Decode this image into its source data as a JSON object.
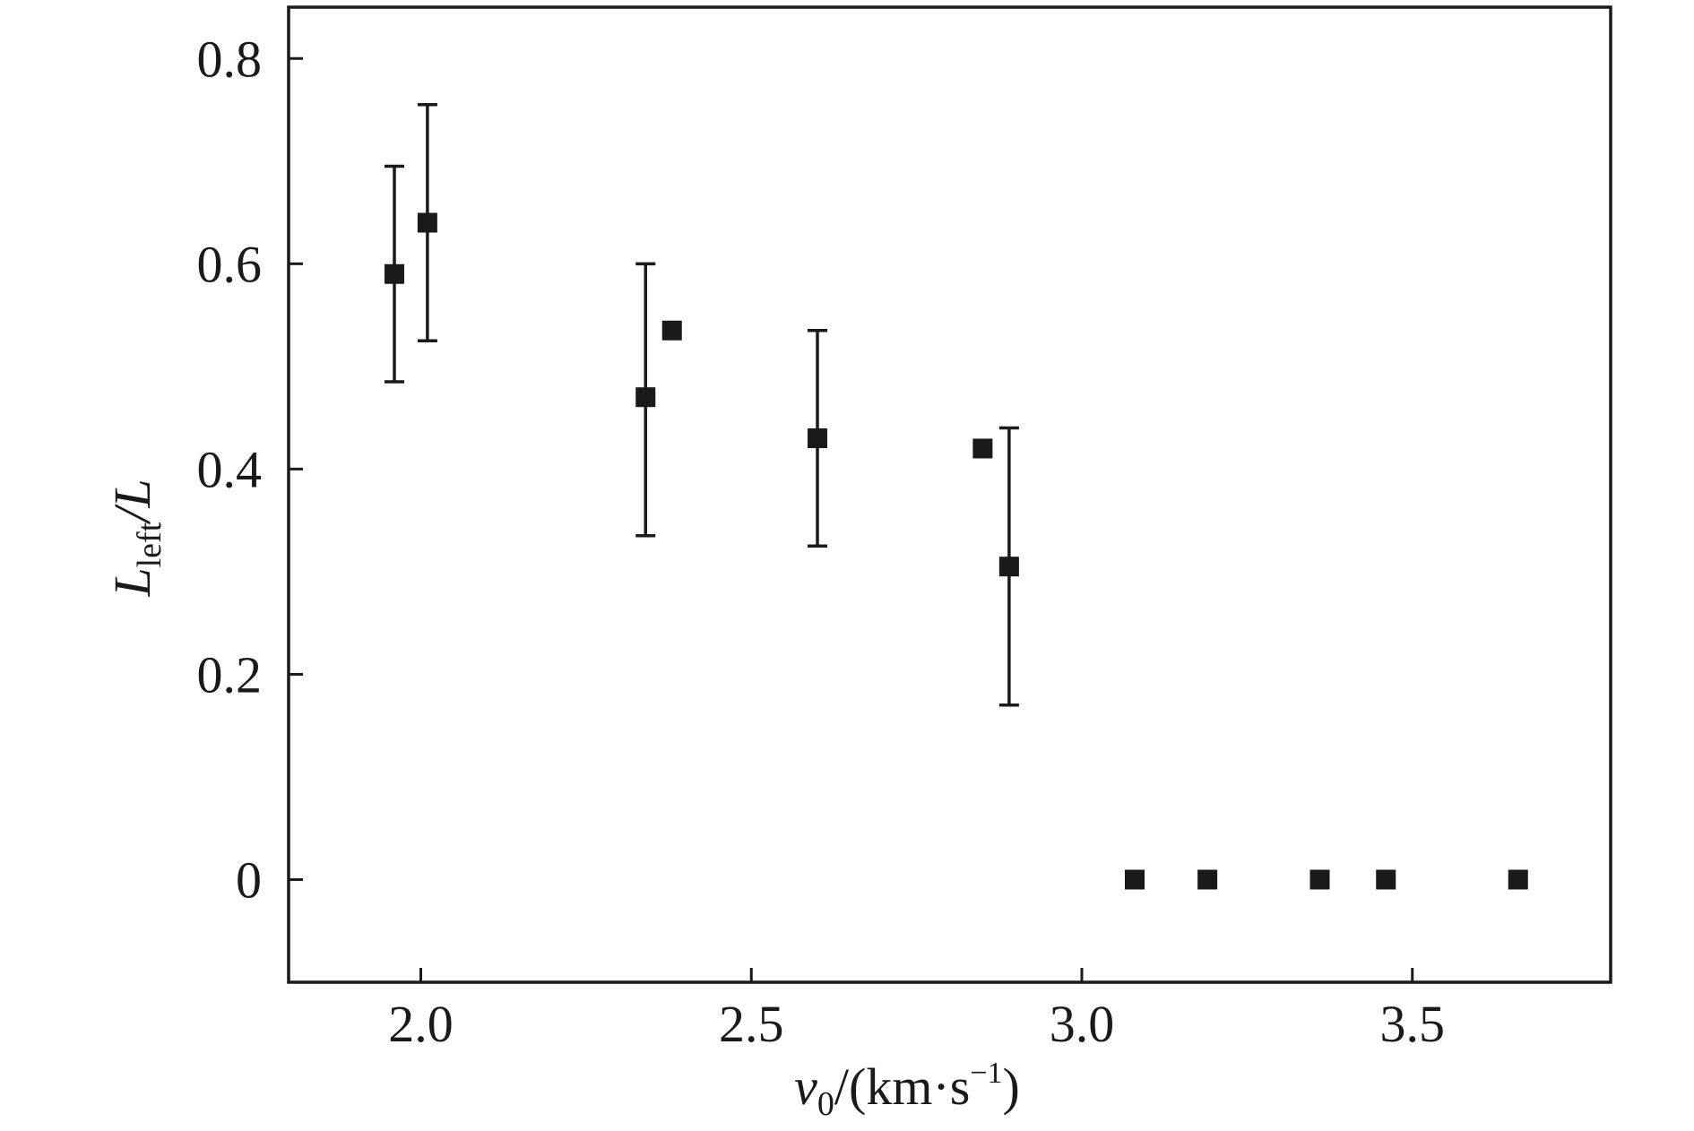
{
  "chart_data": {
    "type": "scatter",
    "title": "",
    "xlabel": {
      "main": "v",
      "sub": "0",
      "tail": "/(km·s",
      "sup": "−1",
      "close": ")"
    },
    "ylabel": {
      "main": "L",
      "sub": "left",
      "tail": "/L"
    },
    "xlim": [
      1.8,
      3.8
    ],
    "ylim": [
      -0.1,
      0.85
    ],
    "xticks": [
      2.0,
      2.5,
      3.0,
      3.5
    ],
    "xtick_labels": [
      "2.0",
      "2.5",
      "3.0",
      "3.5"
    ],
    "yticks": [
      0,
      0.2,
      0.4,
      0.6,
      0.8
    ],
    "ytick_labels": [
      "0",
      "0.2",
      "0.4",
      "0.6",
      "0.8"
    ],
    "grid": false,
    "marker": "square",
    "color": "#1a1a1a",
    "points": [
      {
        "x": 1.96,
        "y": 0.59,
        "err_low": 0.485,
        "err_high": 0.695
      },
      {
        "x": 2.01,
        "y": 0.64,
        "err_low": 0.525,
        "err_high": 0.755
      },
      {
        "x": 2.34,
        "y": 0.47,
        "err_low": 0.335,
        "err_high": 0.6
      },
      {
        "x": 2.38,
        "y": 0.535
      },
      {
        "x": 2.6,
        "y": 0.43,
        "err_low": 0.325,
        "err_high": 0.535
      },
      {
        "x": 2.85,
        "y": 0.42
      },
      {
        "x": 2.89,
        "y": 0.305,
        "err_low": 0.17,
        "err_high": 0.44
      },
      {
        "x": 3.08,
        "y": 0.0
      },
      {
        "x": 3.19,
        "y": 0.0
      },
      {
        "x": 3.36,
        "y": 0.0
      },
      {
        "x": 3.46,
        "y": 0.0
      },
      {
        "x": 3.66,
        "y": 0.0
      }
    ]
  }
}
